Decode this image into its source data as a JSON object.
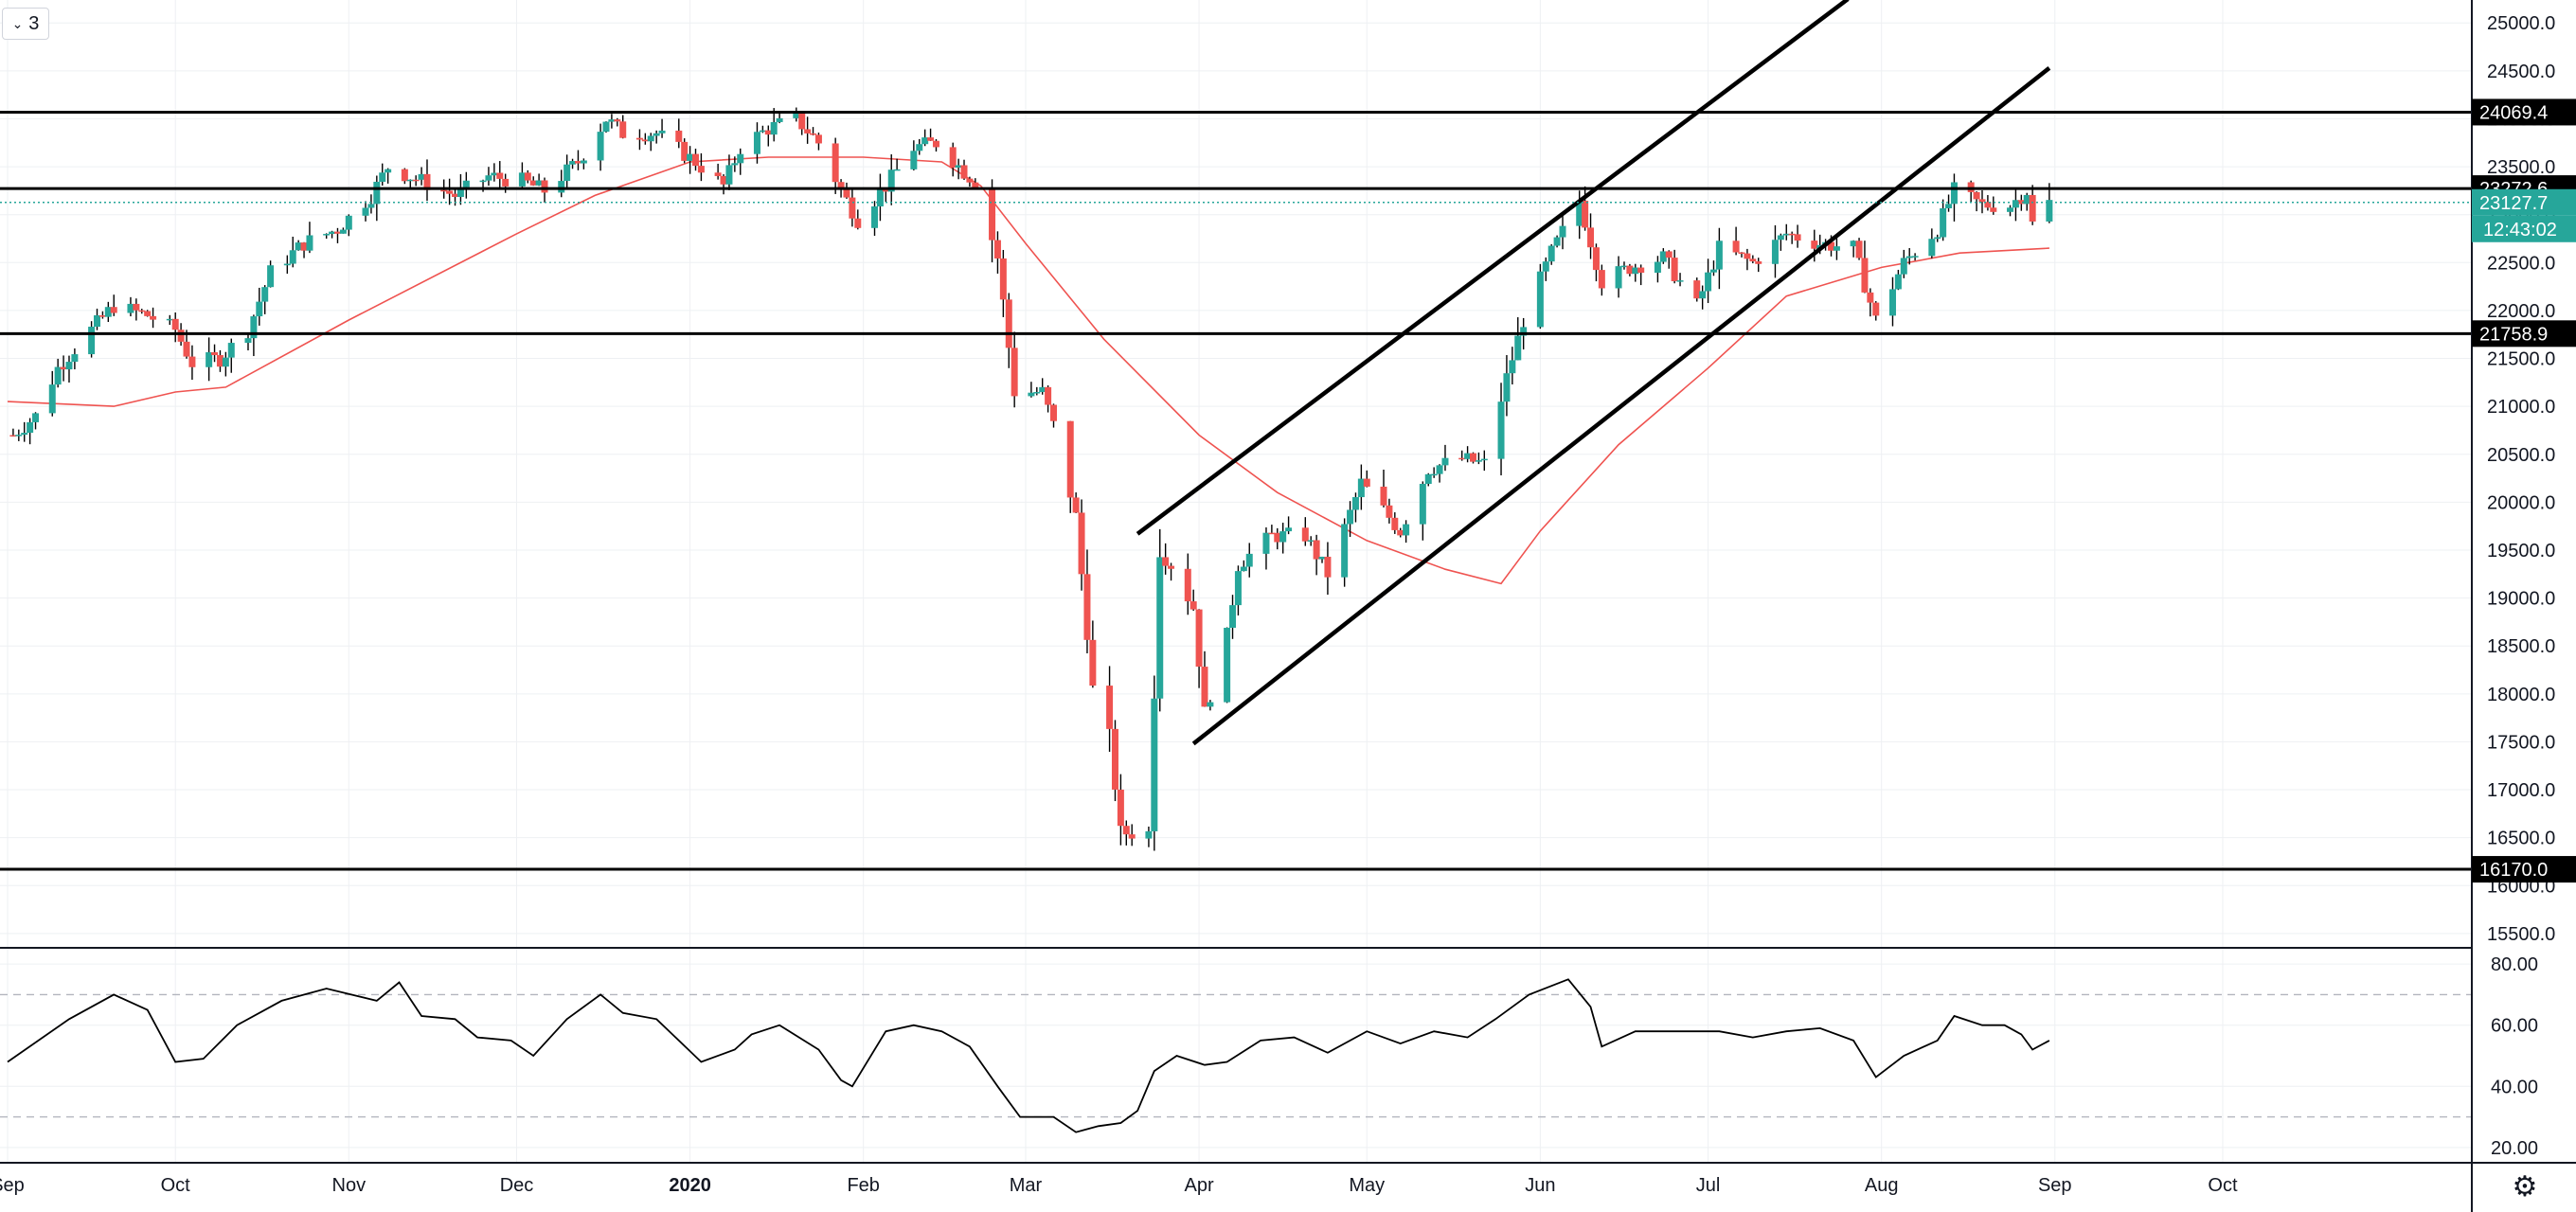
{
  "toolbar": {
    "interval_label": "3",
    "interval_icon": "chevron-down-icon"
  },
  "settings_icon": "gear-icon",
  "colors": {
    "up": "#26a69a",
    "down": "#ef5350",
    "ma": "#ef5350",
    "grid": "#eef0f3",
    "line": "#000000",
    "price_tag_last": "#26a69a",
    "rsi_line": "#000000"
  },
  "chart_data": [
    {
      "type": "candlestick",
      "title": "",
      "grid": true,
      "ylim": [
        15400,
        25200
      ],
      "y_ticks": [
        15500,
        16000,
        16500,
        17000,
        17500,
        18000,
        18500,
        19000,
        19500,
        20000,
        20500,
        21000,
        21500,
        22000,
        22500,
        23000,
        23500,
        24000,
        24500,
        25000
      ],
      "y_tick_labels": [
        "15500.0",
        "16000.0",
        "16500.0",
        "17000.0",
        "17500.0",
        "18000.0",
        "18500.0",
        "19000.0",
        "19500.0",
        "20000.0",
        "20500.0",
        "21000.0",
        "21500.0",
        "22000.0",
        "22500.0",
        "23000.0",
        "23500.0",
        "24000.0",
        "24500.0",
        "25000.0"
      ],
      "x_range": [
        "2019-09-01",
        "2020-10-31"
      ],
      "x_ticks": [
        {
          "date": "2019-09-01",
          "label": "Sep"
        },
        {
          "date": "2019-10-01",
          "label": "Oct"
        },
        {
          "date": "2019-11-01",
          "label": "Nov"
        },
        {
          "date": "2019-12-01",
          "label": "Dec"
        },
        {
          "date": "2020-01-01",
          "label": "2020",
          "bold": true
        },
        {
          "date": "2020-02-01",
          "label": "Feb"
        },
        {
          "date": "2020-03-01",
          "label": "Mar"
        },
        {
          "date": "2020-04-01",
          "label": "Apr"
        },
        {
          "date": "2020-05-01",
          "label": "May"
        },
        {
          "date": "2020-06-01",
          "label": "Jun"
        },
        {
          "date": "2020-07-01",
          "label": "Jul"
        },
        {
          "date": "2020-08-01",
          "label": "Aug"
        },
        {
          "date": "2020-09-01",
          "label": "Sep"
        },
        {
          "date": "2020-10-01",
          "label": "Oct"
        }
      ],
      "close_series": [
        [
          "2019-09-02",
          20700
        ],
        [
          "2019-09-06",
          20900
        ],
        [
          "2019-09-10",
          21400
        ],
        [
          "2019-09-16",
          21800
        ],
        [
          "2019-09-20",
          22050
        ],
        [
          "2019-09-26",
          21950
        ],
        [
          "2019-10-01",
          21800
        ],
        [
          "2019-10-04",
          21450
        ],
        [
          "2019-10-09",
          21500
        ],
        [
          "2019-10-14",
          21800
        ],
        [
          "2019-10-18",
          22400
        ],
        [
          "2019-10-24",
          22700
        ],
        [
          "2019-10-30",
          22850
        ],
        [
          "2019-11-05",
          23200
        ],
        [
          "2019-11-08",
          23500
        ],
        [
          "2019-11-14",
          23350
        ],
        [
          "2019-11-20",
          23200
        ],
        [
          "2019-11-26",
          23400
        ],
        [
          "2019-12-02",
          23350
        ],
        [
          "2019-12-06",
          23250
        ],
        [
          "2019-12-12",
          23550
        ],
        [
          "2019-12-17",
          24000
        ],
        [
          "2019-12-20",
          23850
        ],
        [
          "2019-12-26",
          23850
        ],
        [
          "2020-01-02",
          23550
        ],
        [
          "2020-01-07",
          23300
        ],
        [
          "2020-01-10",
          23700
        ],
        [
          "2020-01-15",
          23900
        ],
        [
          "2020-01-20",
          24000
        ],
        [
          "2020-01-24",
          23750
        ],
        [
          "2020-01-28",
          23250
        ],
        [
          "2020-01-31",
          22950
        ],
        [
          "2020-02-05",
          23300
        ],
        [
          "2020-02-10",
          23700
        ],
        [
          "2020-02-14",
          23750
        ],
        [
          "2020-02-19",
          23450
        ],
        [
          "2020-02-21",
          23350
        ],
        [
          "2020-02-25",
          22550
        ],
        [
          "2020-02-28",
          21150
        ],
        [
          "2020-03-04",
          21150
        ],
        [
          "2020-03-06",
          20800
        ],
        [
          "2020-03-10",
          19850
        ],
        [
          "2020-03-13",
          18050
        ],
        [
          "2020-03-16",
          17550
        ],
        [
          "2020-03-18",
          16550
        ],
        [
          "2020-03-19",
          16550
        ],
        [
          "2020-03-23",
          16550
        ],
        [
          "2020-03-25",
          19500
        ],
        [
          "2020-03-27",
          19350
        ],
        [
          "2020-03-31",
          18900
        ],
        [
          "2020-04-02",
          17800
        ],
        [
          "2020-04-06",
          18600
        ],
        [
          "2020-04-08",
          19350
        ],
        [
          "2020-04-14",
          19650
        ],
        [
          "2020-04-20",
          19650
        ],
        [
          "2020-04-24",
          19250
        ],
        [
          "2020-04-30",
          20200
        ],
        [
          "2020-05-07",
          19700
        ],
        [
          "2020-05-12",
          20350
        ],
        [
          "2020-05-18",
          20450
        ],
        [
          "2020-05-22",
          20400
        ],
        [
          "2020-05-26",
          21300
        ],
        [
          "2020-05-29",
          21900
        ],
        [
          "2020-06-03",
          22600
        ],
        [
          "2020-06-08",
          23150
        ],
        [
          "2020-06-12",
          22300
        ],
        [
          "2020-06-17",
          22450
        ],
        [
          "2020-06-23",
          22550
        ],
        [
          "2020-06-29",
          22050
        ],
        [
          "2020-07-03",
          22650
        ],
        [
          "2020-07-09",
          22500
        ],
        [
          "2020-07-15",
          22800
        ],
        [
          "2020-07-21",
          22700
        ],
        [
          "2020-07-27",
          22650
        ],
        [
          "2020-07-31",
          21900
        ],
        [
          "2020-08-05",
          22500
        ],
        [
          "2020-08-11",
          22850
        ],
        [
          "2020-08-14",
          23250
        ],
        [
          "2020-08-19",
          23100
        ],
        [
          "2020-08-24",
          23100
        ],
        [
          "2020-08-27",
          23250
        ],
        [
          "2020-08-28",
          22900
        ],
        [
          "2020-08-31",
          23127.7
        ]
      ],
      "moving_average": [
        [
          "2019-09-01",
          21050
        ],
        [
          "2019-09-20",
          21000
        ],
        [
          "2019-10-01",
          21150
        ],
        [
          "2019-10-10",
          21200
        ],
        [
          "2019-11-01",
          21900
        ],
        [
          "2019-12-01",
          22800
        ],
        [
          "2019-12-15",
          23200
        ],
        [
          "2020-01-01",
          23550
        ],
        [
          "2020-01-15",
          23600
        ],
        [
          "2020-02-01",
          23600
        ],
        [
          "2020-02-15",
          23550
        ],
        [
          "2020-02-22",
          23300
        ],
        [
          "2020-03-01",
          22700
        ],
        [
          "2020-03-15",
          21700
        ],
        [
          "2020-04-01",
          20700
        ],
        [
          "2020-04-15",
          20100
        ],
        [
          "2020-05-01",
          19600
        ],
        [
          "2020-05-15",
          19300
        ],
        [
          "2020-05-25",
          19150
        ],
        [
          "2020-06-01",
          19700
        ],
        [
          "2020-06-15",
          20600
        ],
        [
          "2020-07-01",
          21400
        ],
        [
          "2020-07-15",
          22150
        ],
        [
          "2020-08-01",
          22450
        ],
        [
          "2020-08-15",
          22600
        ],
        [
          "2020-08-31",
          22650
        ]
      ],
      "horizontal_levels": [
        24069.4,
        23272.6,
        21758.9,
        16170.0
      ],
      "horizontal_level_labels": [
        "24069.4",
        "23272.6",
        "21758.9",
        "16170.0"
      ],
      "trend_lines": [
        {
          "from": [
            "2020-03-21",
            19670
          ],
          "to": [
            "2020-07-26",
            25250
          ]
        },
        {
          "from": [
            "2020-03-31",
            17480
          ],
          "to": [
            "2020-08-31",
            24530
          ]
        }
      ],
      "last_price": 23127.7,
      "last_price_label": "23127.7",
      "countdown_label": "12:43:02"
    },
    {
      "type": "line",
      "title": "",
      "ylim": [
        15,
        85
      ],
      "y_ticks": [
        20,
        40,
        60,
        80
      ],
      "y_tick_labels": [
        "20.00",
        "40.00",
        "60.00",
        "80.00"
      ],
      "bands": [
        30,
        70
      ],
      "values": [
        [
          "2019-09-01",
          48
        ],
        [
          "2019-09-12",
          62
        ],
        [
          "2019-09-20",
          70
        ],
        [
          "2019-09-26",
          65
        ],
        [
          "2019-10-01",
          48
        ],
        [
          "2019-10-06",
          49
        ],
        [
          "2019-10-12",
          60
        ],
        [
          "2019-10-20",
          68
        ],
        [
          "2019-10-28",
          72
        ],
        [
          "2019-11-06",
          68
        ],
        [
          "2019-11-10",
          74
        ],
        [
          "2019-11-14",
          63
        ],
        [
          "2019-11-20",
          62
        ],
        [
          "2019-11-24",
          56
        ],
        [
          "2019-11-30",
          55
        ],
        [
          "2019-12-04",
          50
        ],
        [
          "2019-12-10",
          62
        ],
        [
          "2019-12-16",
          70
        ],
        [
          "2019-12-20",
          64
        ],
        [
          "2019-12-26",
          62
        ],
        [
          "2019-12-30",
          55
        ],
        [
          "2020-01-03",
          48
        ],
        [
          "2020-01-09",
          52
        ],
        [
          "2020-01-12",
          57
        ],
        [
          "2020-01-17",
          60
        ],
        [
          "2020-01-24",
          52
        ],
        [
          "2020-01-28",
          42
        ],
        [
          "2020-01-30",
          40
        ],
        [
          "2020-02-05",
          58
        ],
        [
          "2020-02-10",
          60
        ],
        [
          "2020-02-15",
          58
        ],
        [
          "2020-02-20",
          53
        ],
        [
          "2020-02-25",
          40
        ],
        [
          "2020-02-29",
          30
        ],
        [
          "2020-03-06",
          30
        ],
        [
          "2020-03-10",
          25
        ],
        [
          "2020-03-14",
          27
        ],
        [
          "2020-03-18",
          28
        ],
        [
          "2020-03-21",
          32
        ],
        [
          "2020-03-24",
          45
        ],
        [
          "2020-03-28",
          50
        ],
        [
          "2020-04-02",
          47
        ],
        [
          "2020-04-06",
          48
        ],
        [
          "2020-04-12",
          55
        ],
        [
          "2020-04-18",
          56
        ],
        [
          "2020-04-24",
          51
        ],
        [
          "2020-05-01",
          58
        ],
        [
          "2020-05-07",
          54
        ],
        [
          "2020-05-13",
          58
        ],
        [
          "2020-05-19",
          56
        ],
        [
          "2020-05-24",
          62
        ],
        [
          "2020-05-30",
          70
        ],
        [
          "2020-06-06",
          75
        ],
        [
          "2020-06-10",
          66
        ],
        [
          "2020-06-12",
          53
        ],
        [
          "2020-06-18",
          58
        ],
        [
          "2020-06-26",
          58
        ],
        [
          "2020-07-03",
          58
        ],
        [
          "2020-07-09",
          56
        ],
        [
          "2020-07-15",
          58
        ],
        [
          "2020-07-21",
          59
        ],
        [
          "2020-07-27",
          55
        ],
        [
          "2020-07-31",
          43
        ],
        [
          "2020-08-05",
          50
        ],
        [
          "2020-08-11",
          55
        ],
        [
          "2020-08-14",
          63
        ],
        [
          "2020-08-19",
          60
        ],
        [
          "2020-08-23",
          60
        ],
        [
          "2020-08-26",
          57
        ],
        [
          "2020-08-28",
          52
        ],
        [
          "2020-08-31",
          55
        ]
      ]
    }
  ]
}
